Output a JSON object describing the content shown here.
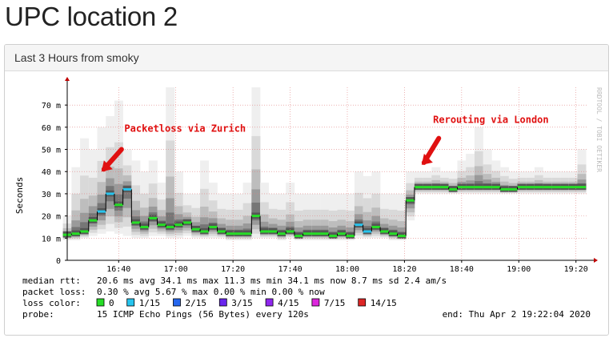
{
  "page": {
    "title": "UPC location 2"
  },
  "panel": {
    "heading": "Last 3 Hours from smoky"
  },
  "chart_data": {
    "type": "line",
    "ylabel": "Seconds",
    "y_tick_labels": [
      "0",
      "10 m",
      "20 m",
      "30 m",
      "40 m",
      "50 m",
      "60 m",
      "70 m"
    ],
    "y_tick_values": [
      0,
      10,
      20,
      30,
      40,
      50,
      60,
      70
    ],
    "ylim": [
      0,
      78
    ],
    "x_tick_labels": [
      "16:40",
      "17:00",
      "17:20",
      "17:40",
      "18:00",
      "18:20",
      "18:40",
      "19:00",
      "19:20"
    ],
    "x_tick_values": [
      1000,
      1020,
      1040,
      1060,
      1080,
      1100,
      1120,
      1140,
      1160
    ],
    "xlim": [
      982,
      1164
    ],
    "watermark": "RRDTOOL / TOBI OETIKER",
    "annotations": [
      {
        "text": "Packetloss via Zurich",
        "x": 1002,
        "y": 58
      },
      {
        "text": "Rerouting via London",
        "x": 1110,
        "y": 62
      }
    ],
    "median_rtt": {
      "x": [
        982,
        985,
        988,
        991,
        994,
        997,
        1000,
        1003,
        1006,
        1009,
        1012,
        1015,
        1018,
        1021,
        1024,
        1027,
        1030,
        1033,
        1036,
        1039,
        1042,
        1045,
        1048,
        1051,
        1054,
        1057,
        1060,
        1063,
        1066,
        1069,
        1072,
        1075,
        1078,
        1081,
        1084,
        1087,
        1090,
        1093,
        1096,
        1099,
        1102,
        1105,
        1108,
        1111,
        1114,
        1117,
        1120,
        1123,
        1126,
        1129,
        1132,
        1135,
        1138,
        1141,
        1144,
        1147,
        1150,
        1153,
        1156,
        1159,
        1162
      ],
      "y": [
        11.5,
        12,
        13,
        18,
        22,
        30,
        25,
        32,
        17,
        15,
        19,
        16,
        15,
        16,
        17,
        14,
        13,
        15,
        13,
        12,
        12,
        12,
        20,
        13,
        13,
        12,
        13,
        11,
        12,
        12,
        12,
        11,
        12,
        11,
        16,
        13,
        15,
        13,
        12,
        11,
        27,
        33,
        33,
        33,
        33,
        32,
        33,
        33,
        33,
        33,
        33,
        32,
        32,
        33,
        33,
        33,
        33,
        33,
        33,
        33,
        33
      ],
      "loss_color": [
        "0",
        "0",
        "0",
        "0",
        "1/15",
        "1/15",
        "0",
        "1/15",
        "0",
        "0",
        "0",
        "0",
        "0",
        "0",
        "0",
        "0",
        "0",
        "0",
        "0",
        "0",
        "0",
        "0",
        "0",
        "0",
        "0",
        "0",
        "0",
        "0",
        "0",
        "0",
        "0",
        "0",
        "0",
        "0",
        "1/15",
        "1/15",
        "0",
        "0",
        "0",
        "0",
        "0",
        "0",
        "0",
        "0",
        "0",
        "0",
        "0",
        "0",
        "0",
        "0",
        "0",
        "0",
        "0",
        "0",
        "0",
        "0",
        "0",
        "0",
        "0",
        "0",
        "0"
      ],
      "band_max": [
        20,
        42,
        55,
        50,
        60,
        65,
        72,
        50,
        45,
        40,
        45,
        35,
        80,
        40,
        30,
        30,
        45,
        35,
        30,
        30,
        30,
        35,
        80,
        35,
        30,
        30,
        35,
        30,
        30,
        30,
        30,
        30,
        30,
        30,
        40,
        38,
        40,
        30,
        30,
        30,
        40,
        40,
        40,
        42,
        40,
        40,
        45,
        48,
        60,
        50,
        45,
        42,
        40,
        40,
        40,
        42,
        40,
        40,
        40,
        40,
        50
      ],
      "band_min": [
        9,
        9,
        10,
        11,
        12,
        13,
        12,
        11,
        10,
        10,
        11,
        11,
        10,
        10,
        11,
        10,
        10,
        10,
        10,
        9,
        9,
        9,
        10,
        10,
        10,
        9,
        10,
        9,
        9,
        9,
        9,
        9,
        9,
        9,
        10,
        10,
        10,
        10,
        9,
        9,
        18,
        30,
        30,
        30,
        30,
        30,
        30,
        30,
        30,
        30,
        30,
        30,
        30,
        30,
        30,
        30,
        30,
        30,
        30,
        30,
        30
      ]
    },
    "legend": {
      "median_rtt_label": "median rtt:",
      "median_rtt_values": "20.6 ms avg   34.1 ms max   11.3 ms min   34.1 ms now   8.7 ms sd   2.4    am/s",
      "packet_loss_label": "packet loss:",
      "packet_loss_values": "0.30 % avg   5.67 % max   0.00 % min   0.00 % now",
      "loss_color_label": "loss color:",
      "loss_colors": [
        {
          "label": "0",
          "color": "#26dd26"
        },
        {
          "label": "1/15",
          "color": "#26c4ee"
        },
        {
          "label": "2/15",
          "color": "#2667ee"
        },
        {
          "label": "3/15",
          "color": "#6a26ee"
        },
        {
          "label": "4/15",
          "color": "#8f26ee"
        },
        {
          "label": "7/15",
          "color": "#dd26dd"
        },
        {
          "label": "14/15",
          "color": "#dd2626"
        }
      ],
      "probe_label": "probe:",
      "probe_value": "15 ICMP Echo Pings (56 Bytes) every 120s",
      "end_label": "end: Thu Apr  2 19:22:04 2020"
    }
  }
}
